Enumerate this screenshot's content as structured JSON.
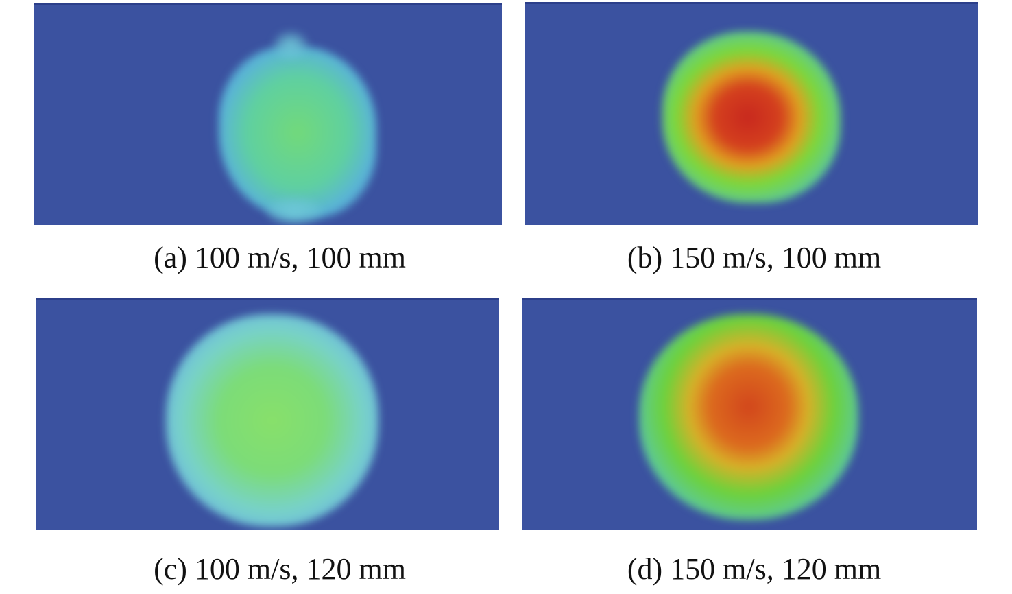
{
  "figure": {
    "panels": [
      {
        "id": "a",
        "caption": "(a) 100 m/s, 100 mm",
        "max_color": "#7ee07a"
      },
      {
        "id": "b",
        "caption": "(b) 150 m/s, 100 mm",
        "max_color": "#d62a1e"
      },
      {
        "id": "c",
        "caption": "(c) 100 m/s, 120 mm",
        "max_color": "#8ee46c"
      },
      {
        "id": "d",
        "caption": "(d) 150 m/s, 120 mm",
        "max_color": "#d8461c"
      }
    ],
    "background_color": "#3b52a0"
  }
}
